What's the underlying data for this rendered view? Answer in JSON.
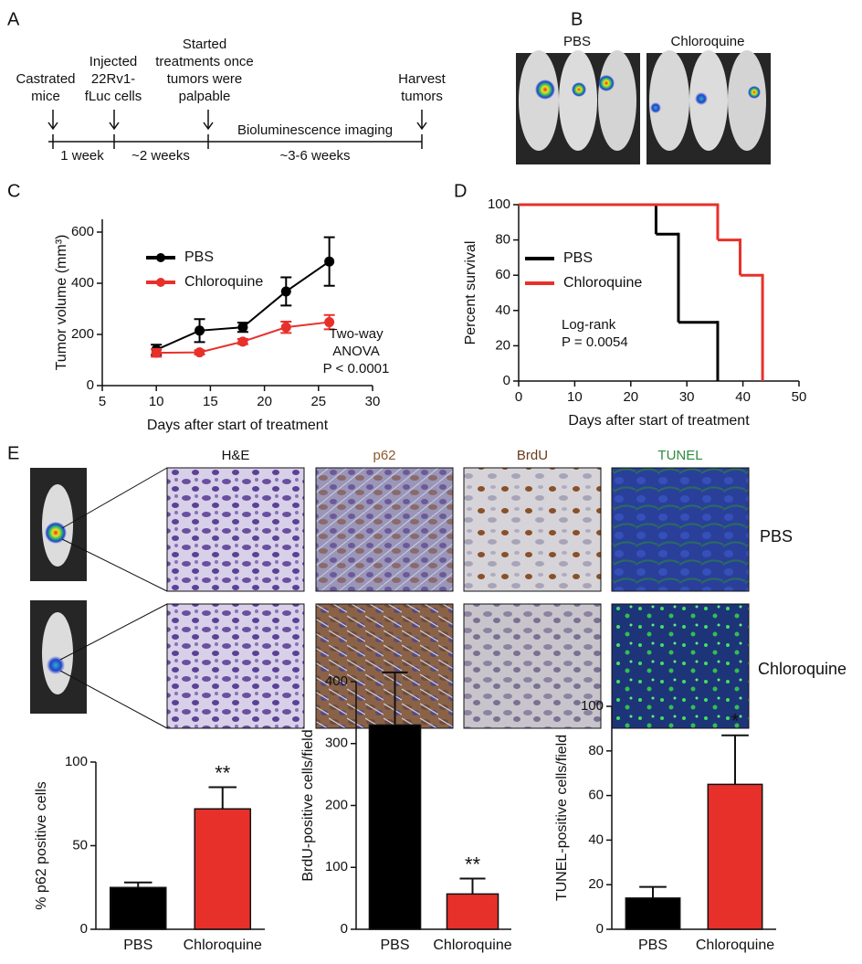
{
  "timeline": {
    "panel_label": "A",
    "events": [
      [
        "Castrated",
        "mice"
      ],
      [
        "Injected",
        "22Rv1-",
        "fLuc cells"
      ],
      [
        "Started",
        "treatments once",
        "tumors were",
        "palpable"
      ],
      [
        "Harvest",
        "tumors"
      ]
    ],
    "intervals": [
      "1 week",
      "~2 weeks",
      "~3-6 weeks"
    ],
    "imaging": "Bioluminescence imaging"
  },
  "imaging_panel": {
    "panel_label": "B",
    "labels": [
      "PBS",
      "Chloroquine"
    ]
  },
  "histology": {
    "panel_label": "E",
    "columns": [
      "H&E",
      "p62",
      "BrdU",
      "TUNEL"
    ],
    "rows": [
      "PBS",
      "Chloroquine"
    ]
  },
  "chart_data": [
    {
      "type": "line",
      "panel_label": "C",
      "xlabel": "Days after start of treatment",
      "ylabel": "Tumor volume (mm³)",
      "x": [
        10,
        14,
        18,
        22,
        26
      ],
      "series": [
        {
          "name": "PBS",
          "color": "#000000",
          "values": [
            140,
            215,
            228,
            368,
            485
          ],
          "errors": [
            20,
            45,
            18,
            55,
            95
          ]
        },
        {
          "name": "Chloroquine",
          "color": "#e8302a",
          "values": [
            128,
            130,
            172,
            228,
            248
          ],
          "errors": [
            15,
            8,
            10,
            22,
            28
          ]
        }
      ],
      "xlim": [
        5,
        30
      ],
      "xticks": [
        5,
        10,
        15,
        20,
        25,
        30
      ],
      "ylim": [
        0,
        650
      ],
      "yticks": [
        0,
        200,
        400,
        600
      ],
      "annotation": [
        "Two-way",
        "ANOVA",
        "P < 0.0001"
      ]
    },
    {
      "type": "step",
      "panel_label": "D",
      "xlabel": "Days after start of treatment",
      "ylabel": "Percent survival",
      "series": [
        {
          "name": "PBS",
          "color": "#000000",
          "x": [
            0,
            24.5,
            28.5,
            35.5
          ],
          "values": [
            100,
            83.3,
            33.3,
            0
          ]
        },
        {
          "name": "Chloroquine",
          "color": "#e8302a",
          "x": [
            0,
            35.5,
            39.5,
            43.5
          ],
          "values": [
            100,
            80,
            60,
            0
          ]
        }
      ],
      "xlim": [
        0,
        50
      ],
      "xticks": [
        0,
        10,
        20,
        30,
        40,
        50
      ],
      "ylim": [
        0,
        100
      ],
      "yticks": [
        0,
        20,
        40,
        60,
        80,
        100
      ],
      "annotation": [
        "Log-rank",
        "P = 0.0054"
      ]
    },
    {
      "type": "bar",
      "ylabel": "% p62 positive cells",
      "categories": [
        "PBS",
        "Chloroquine"
      ],
      "values": [
        25,
        72
      ],
      "errors": [
        3,
        13
      ],
      "colors": [
        "#000000",
        "#e8302a"
      ],
      "ylim": [
        0,
        100
      ],
      "yticks": [
        0,
        50,
        100
      ],
      "annotation": "**"
    },
    {
      "type": "bar",
      "ylabel": "BrdU-positive cells/field",
      "categories": [
        "PBS",
        "Chloroquine"
      ],
      "values": [
        330,
        57
      ],
      "errors": [
        85,
        25
      ],
      "colors": [
        "#000000",
        "#e8302a"
      ],
      "ylim": [
        0,
        400
      ],
      "yticks": [
        0,
        100,
        200,
        300,
        400
      ],
      "annotation": "**"
    },
    {
      "type": "bar",
      "ylabel": "TUNEL-positive cells/field",
      "categories": [
        "PBS",
        "Chloroquine"
      ],
      "values": [
        14,
        65
      ],
      "errors": [
        5,
        22
      ],
      "colors": [
        "#000000",
        "#e8302a"
      ],
      "ylim": [
        0,
        100
      ],
      "yticks": [
        0,
        20,
        40,
        60,
        80,
        100
      ],
      "annotation": "*"
    }
  ]
}
